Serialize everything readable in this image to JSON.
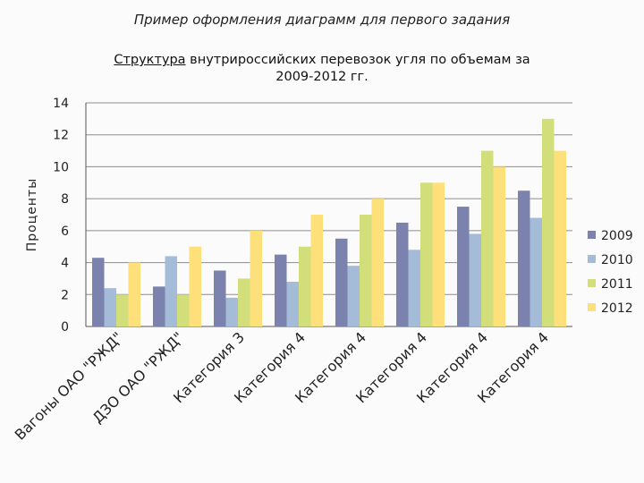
{
  "page_title": "Пример оформления диаграмм для первого задания",
  "chart_title_underlined": "Структура",
  "chart_title_line1_rest": " внутрироссийских перевозок угля по объемам за",
  "chart_title_line2": "2009-2012 гг.",
  "colors": {
    "2009": "#7a82ad",
    "2010": "#a4bcd8",
    "2011": "#d2de7a",
    "2012": "#fde07a",
    "grid": "#8c8c8c",
    "axis_text": "#222222"
  },
  "chart_data": {
    "type": "bar",
    "title": "Структура внутрироссийских перевозок угля по объемам за 2009-2012 гг.",
    "ylabel": "Проценты",
    "xlabel": "",
    "ylim": [
      0,
      14
    ],
    "yticks": [
      0,
      2,
      4,
      6,
      8,
      10,
      12,
      14
    ],
    "grid": true,
    "legend_position": "right",
    "categories": [
      "Вагоны ОАО \"РЖД\"",
      "ДЗО ОАО \"РЖД\"",
      "Категория 3",
      "Категория 4",
      "Категория 4",
      "Категория 4",
      "Категория 4",
      "Категория 4"
    ],
    "series": [
      {
        "name": "2009",
        "values": [
          4.3,
          2.5,
          3.5,
          4.5,
          5.5,
          6.5,
          7.5,
          8.5
        ]
      },
      {
        "name": "2010",
        "values": [
          2.4,
          4.4,
          1.8,
          2.8,
          3.8,
          4.8,
          5.8,
          6.8
        ]
      },
      {
        "name": "2011",
        "values": [
          2.0,
          2.0,
          3.0,
          5.0,
          7.0,
          9.0,
          11.0,
          13.0
        ]
      },
      {
        "name": "2012",
        "values": [
          4.0,
          5.0,
          6.0,
          7.0,
          8.0,
          9.0,
          10.0,
          11.0
        ]
      }
    ]
  }
}
